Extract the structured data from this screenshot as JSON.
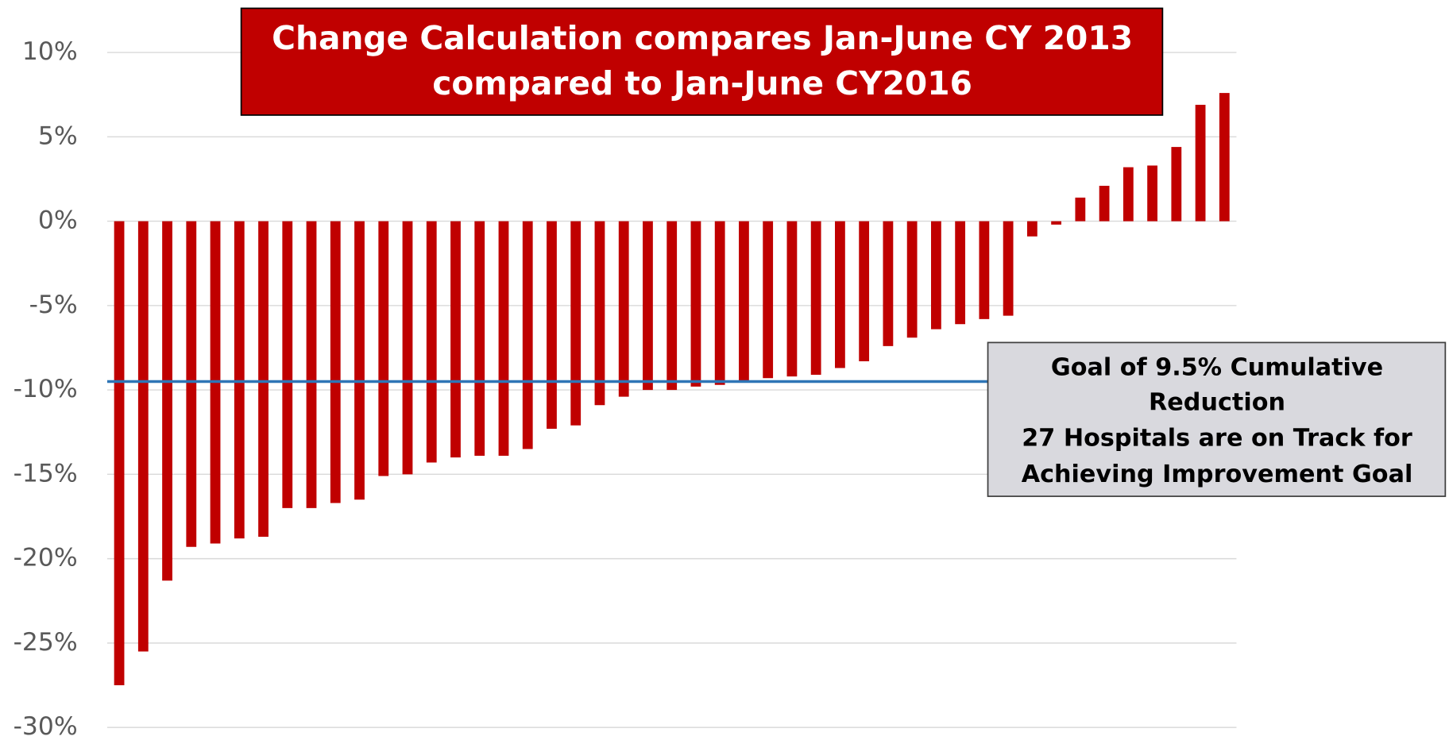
{
  "chart_data": {
    "type": "bar",
    "title": [
      "Change Calculation compares Jan-June CY 2013",
      "compared to Jan-June CY2016"
    ],
    "values": [
      -27.5,
      -25.5,
      -21.3,
      -19.3,
      -19.1,
      -18.8,
      -18.7,
      -17.0,
      -17.0,
      -16.7,
      -16.5,
      -15.1,
      -15.0,
      -14.3,
      -14.0,
      -13.9,
      -13.9,
      -13.5,
      -12.3,
      -12.1,
      -10.9,
      -10.4,
      -10.0,
      -10.0,
      -9.8,
      -9.7,
      -9.5,
      -9.3,
      -9.2,
      -9.1,
      -8.7,
      -8.3,
      -7.4,
      -6.9,
      -6.4,
      -6.1,
      -5.8,
      -5.6,
      -0.9,
      -0.2,
      1.4,
      2.1,
      3.2,
      3.3,
      4.4,
      6.9,
      7.6
    ],
    "color": "#c00000",
    "ylim": [
      -30,
      10
    ],
    "yticks": [
      {
        "value": 10,
        "label": "10%"
      },
      {
        "value": 5,
        "label": "5%"
      },
      {
        "value": 0,
        "label": "0%"
      },
      {
        "value": -5,
        "label": "-5%"
      },
      {
        "value": -10,
        "label": "-10%"
      },
      {
        "value": -15,
        "label": "-15%"
      },
      {
        "value": -20,
        "label": "-20%"
      },
      {
        "value": -25,
        "label": "-25%"
      },
      {
        "value": -30,
        "label": "-30%"
      }
    ],
    "grid": true,
    "reference_line": {
      "value": -9.5,
      "color": "#2e75b6"
    },
    "annotation": [
      "Goal of 9.5% Cumulative",
      "Reduction",
      "27 Hospitals are on Track for",
      "Achieving Improvement Goal"
    ]
  }
}
